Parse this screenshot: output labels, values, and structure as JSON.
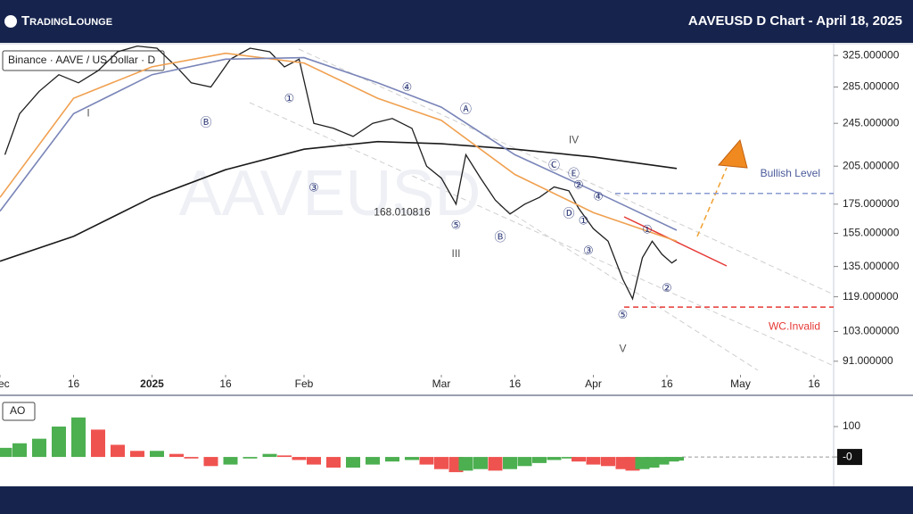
{
  "header": {
    "logo": "TradingLounge",
    "title": "AAVEUSD D Chart - April 18, 2025"
  },
  "chart_data": [
    {
      "type": "line",
      "log_scale": true,
      "watermark": "AAVEUSD",
      "xlim": [
        "2024-12-01",
        "2025-05-20"
      ],
      "xticks": [
        {
          "value": "2024-12-01",
          "label": "Dec"
        },
        {
          "value": "2024-12-16",
          "label": "16"
        },
        {
          "value": "2025-01-01",
          "label": "2025"
        },
        {
          "value": "2025-01-16",
          "label": "16"
        },
        {
          "value": "2025-02-01",
          "label": "Feb"
        },
        {
          "value": "2025-03-01",
          "label": "Mar"
        },
        {
          "value": "2025-03-16",
          "label": "16"
        },
        {
          "value": "2025-04-01",
          "label": "Apr"
        },
        {
          "value": "2025-04-16",
          "label": "16"
        },
        {
          "value": "2025-05-01",
          "label": "May"
        },
        {
          "value": "2025-05-16",
          "label": "16"
        }
      ],
      "ylim": [
        86,
        340
      ],
      "yticks": [
        {
          "value": 325,
          "label": "325.000000"
        },
        {
          "value": 285,
          "label": "285.000000"
        },
        {
          "value": 245,
          "label": "245.000000"
        },
        {
          "value": 205,
          "label": "205.000000"
        },
        {
          "value": 175,
          "label": "175.000000"
        },
        {
          "value": 155,
          "label": "155.000000"
        },
        {
          "value": 135,
          "label": "135.000000"
        },
        {
          "value": 119,
          "label": "119.000000"
        },
        {
          "value": 103,
          "label": "103.000000"
        },
        {
          "value": 91,
          "label": "91.000000"
        }
      ],
      "series": [
        {
          "name": "Binance · AAVE / US Dollar · D",
          "color": "#1f1f1f",
          "x": [
            "2024-12-02",
            "2024-12-05",
            "2024-12-09",
            "2024-12-13",
            "2024-12-17",
            "2024-12-21",
            "2024-12-25",
            "2024-12-29",
            "2025-01-02",
            "2025-01-06",
            "2025-01-09",
            "2025-01-13",
            "2025-01-17",
            "2025-01-21",
            "2025-01-25",
            "2025-01-28",
            "2025-01-31",
            "2025-02-03",
            "2025-02-07",
            "2025-02-11",
            "2025-02-15",
            "2025-02-19",
            "2025-02-23",
            "2025-02-26",
            "2025-03-01",
            "2025-03-04",
            "2025-03-06",
            "2025-03-09",
            "2025-03-12",
            "2025-03-15",
            "2025-03-18",
            "2025-03-21",
            "2025-03-24",
            "2025-03-27",
            "2025-03-29",
            "2025-04-01",
            "2025-04-04",
            "2025-04-07",
            "2025-04-09",
            "2025-04-11",
            "2025-04-13",
            "2025-04-15",
            "2025-04-17",
            "2025-04-18"
          ],
          "values": [
            215,
            255,
            280,
            300,
            290,
            305,
            330,
            338,
            335,
            310,
            290,
            285,
            320,
            335,
            330,
            310,
            320,
            245,
            240,
            232,
            245,
            250,
            240,
            205,
            195,
            175,
            215,
            195,
            178,
            168,
            175,
            180,
            188,
            185,
            172,
            158,
            150,
            128,
            118,
            140,
            150,
            142,
            137,
            139
          ]
        },
        {
          "color": "#1a1a1a",
          "x": [
            "2024-12-01",
            "2024-12-16",
            "2025-01-01",
            "2025-01-16",
            "2025-02-01",
            "2025-02-16",
            "2025-03-01",
            "2025-03-16",
            "2025-04-01",
            "2025-04-18"
          ],
          "values": [
            138,
            153,
            180,
            202,
            220,
            227,
            225,
            220,
            213,
            203
          ]
        },
        {
          "color": "#f0a050",
          "x": [
            "2024-12-01",
            "2024-12-16",
            "2025-01-01",
            "2025-01-16",
            "2025-02-01",
            "2025-02-16",
            "2025-03-01",
            "2025-03-16",
            "2025-04-01",
            "2025-04-18"
          ],
          "values": [
            180,
            272,
            310,
            328,
            315,
            272,
            248,
            198,
            169,
            150
          ]
        },
        {
          "color": "#7a85b8",
          "x": [
            "2024-12-01",
            "2024-12-16",
            "2025-01-01",
            "2025-01-16",
            "2025-02-01",
            "2025-02-16",
            "2025-03-01",
            "2025-03-16",
            "2025-04-01",
            "2025-04-18"
          ],
          "values": [
            170,
            255,
            300,
            320,
            322,
            290,
            262,
            215,
            185,
            157
          ]
        }
      ],
      "levels": [
        {
          "label": "Bullish Level",
          "value": 183,
          "color": "#8a9bd0",
          "text_color": "#4a5a9a"
        },
        {
          "label": "WC.Invalid",
          "value": 114,
          "color": "#e53935",
          "text_color": "#e53935"
        }
      ],
      "annotations": [
        {
          "text": "I",
          "x": "2024-12-19",
          "y": 255
        },
        {
          "text": "Ⓑ",
          "x": "2025-01-12",
          "y": 245
        },
        {
          "text": "①",
          "x": "2025-01-29",
          "y": 271
        },
        {
          "text": "③",
          "x": "2025-02-03",
          "y": 187
        },
        {
          "text": "④",
          "x": "2025-02-22",
          "y": 284
        },
        {
          "text": "Ⓐ",
          "x": "2025-03-06",
          "y": 259
        },
        {
          "text": "168.010816",
          "x": "2025-02-21",
          "y": 169
        },
        {
          "text": "⑤",
          "x": "2025-03-04",
          "y": 160
        },
        {
          "text": "III",
          "x": "2025-03-04",
          "y": 142
        },
        {
          "text": "Ⓑ",
          "x": "2025-03-13",
          "y": 152
        },
        {
          "text": "IV",
          "x": "2025-03-28",
          "y": 228
        },
        {
          "text": "Ⓒ",
          "x": "2025-03-24",
          "y": 205
        },
        {
          "text": "Ⓔ",
          "x": "2025-03-28",
          "y": 198
        },
        {
          "text": "②",
          "x": "2025-03-29",
          "y": 189
        },
        {
          "text": "④",
          "x": "2025-04-02",
          "y": 180
        },
        {
          "text": "Ⓓ",
          "x": "2025-03-27",
          "y": 168
        },
        {
          "text": "①",
          "x": "2025-03-30",
          "y": 163
        },
        {
          "text": "③",
          "x": "2025-03-31",
          "y": 144
        },
        {
          "text": "⑤",
          "x": "2025-04-07",
          "y": 110
        },
        {
          "text": "V",
          "x": "2025-04-07",
          "y": 95.6
        },
        {
          "text": "①",
          "x": "2025-04-12",
          "y": 157
        },
        {
          "text": "②",
          "x": "2025-04-16",
          "y": 123
        }
      ]
    },
    {
      "type": "bar",
      "title": "AO",
      "xlim": [
        "2024-12-01",
        "2025-05-20"
      ],
      "ylim": [
        -82,
        197
      ],
      "yticks": [
        100,
        {
          "value": 0,
          "label": "-0"
        }
      ],
      "up_color": "#4caf50",
      "down_color": "#ef5350",
      "x": [
        "2024-12-02",
        "2024-12-05",
        "2024-12-09",
        "2024-12-13",
        "2024-12-17",
        "2024-12-21",
        "2024-12-25",
        "2024-12-29",
        "2025-01-02",
        "2025-01-06",
        "2025-01-09",
        "2025-01-13",
        "2025-01-17",
        "2025-01-21",
        "2025-01-25",
        "2025-01-28",
        "2025-01-31",
        "2025-02-03",
        "2025-02-07",
        "2025-02-11",
        "2025-02-15",
        "2025-02-19",
        "2025-02-23",
        "2025-02-26",
        "2025-03-01",
        "2025-03-04",
        "2025-03-06",
        "2025-03-09",
        "2025-03-12",
        "2025-03-15",
        "2025-03-18",
        "2025-03-21",
        "2025-03-24",
        "2025-03-27",
        "2025-03-29",
        "2025-04-01",
        "2025-04-04",
        "2025-04-07",
        "2025-04-09",
        "2025-04-11",
        "2025-04-13",
        "2025-04-15",
        "2025-04-17",
        "2025-04-18"
      ],
      "values": [
        30,
        45,
        60,
        100,
        130,
        90,
        40,
        20,
        20,
        10,
        -5,
        -30,
        -25,
        -5,
        10,
        5,
        -10,
        -25,
        -35,
        -35,
        -25,
        -15,
        -10,
        -25,
        -40,
        -50,
        -45,
        -40,
        -45,
        -40,
        -30,
        -20,
        -10,
        -5,
        -15,
        -25,
        -30,
        -40,
        -45,
        -40,
        -35,
        -25,
        -15,
        -12
      ]
    }
  ]
}
